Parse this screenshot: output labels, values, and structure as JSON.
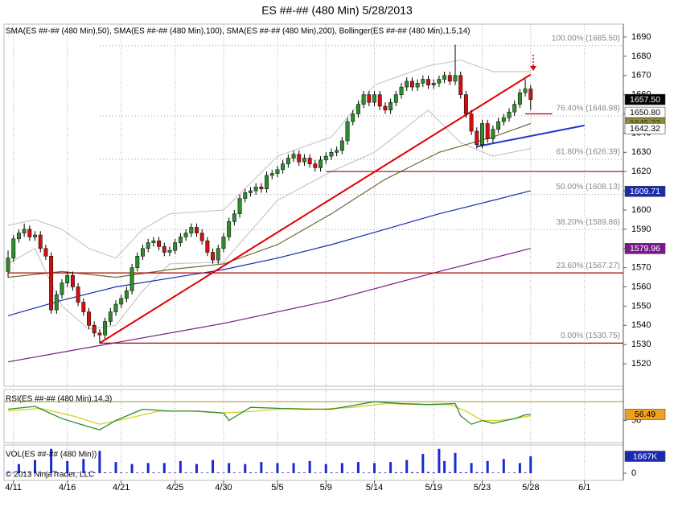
{
  "chart_data": [
    {
      "type": "candlestick",
      "title": "ES ##-## (480 Min)  5/28/2013",
      "legend_text": "SMA(ES ##-## (480 Min),50), SMA(ES ##-## (480 Min),100), SMA(ES ##-## (480 Min),200), Bollinger(ES ##-## (480 Min),1.5,14)",
      "xlim": [
        -0.75,
        114.2
      ],
      "ylim": [
        1508.3,
        1696.7
      ],
      "yticks": [
        1520,
        1530,
        1540,
        1550,
        1560,
        1570,
        1580,
        1590,
        1600,
        1610,
        1620,
        1630,
        1640,
        1650,
        1660,
        1670,
        1680,
        1690
      ],
      "up_color": "#2e8b2e",
      "down_color": "#d01010",
      "candles": [
        [
          1568,
          1579,
          1565,
          1575
        ],
        [
          1575,
          1587,
          1573,
          1585
        ],
        [
          1585,
          1590,
          1583,
          1588
        ],
        [
          1588,
          1593,
          1586,
          1590
        ],
        [
          1590,
          1592,
          1584,
          1586
        ],
        [
          1586,
          1589,
          1584,
          1587
        ],
        [
          1587,
          1589,
          1578,
          1580
        ],
        [
          1580,
          1582,
          1574,
          1576
        ],
        [
          1576,
          1578,
          1546,
          1548
        ],
        [
          1548,
          1558,
          1546,
          1556
        ],
        [
          1556,
          1564,
          1554,
          1562
        ],
        [
          1562,
          1568,
          1560,
          1566
        ],
        [
          1566,
          1568,
          1558,
          1560
        ],
        [
          1560,
          1562,
          1550,
          1552
        ],
        [
          1552,
          1554,
          1545,
          1547
        ],
        [
          1547,
          1549,
          1538,
          1540
        ],
        [
          1540,
          1542,
          1534,
          1536
        ],
        [
          1536,
          1538,
          1530.75,
          1535
        ],
        [
          1535,
          1544,
          1533,
          1542
        ],
        [
          1542,
          1549,
          1540,
          1547
        ],
        [
          1547,
          1553,
          1545,
          1551
        ],
        [
          1551,
          1556,
          1549,
          1554
        ],
        [
          1554,
          1560,
          1552,
          1558
        ],
        [
          1558,
          1572,
          1556,
          1570
        ],
        [
          1570,
          1578,
          1568,
          1576
        ],
        [
          1576,
          1582,
          1574,
          1580
        ],
        [
          1580,
          1585,
          1578,
          1583
        ],
        [
          1583,
          1586,
          1581,
          1584
        ],
        [
          1584,
          1586,
          1579,
          1581
        ],
        [
          1581,
          1583,
          1576,
          1578
        ],
        [
          1578,
          1581,
          1576,
          1579
        ],
        [
          1579,
          1585,
          1577,
          1583
        ],
        [
          1583,
          1588,
          1581,
          1586
        ],
        [
          1586,
          1590,
          1584,
          1588
        ],
        [
          1588,
          1593,
          1586,
          1591
        ],
        [
          1591,
          1593,
          1586,
          1588
        ],
        [
          1588,
          1590,
          1582,
          1584
        ],
        [
          1584,
          1586,
          1576,
          1578
        ],
        [
          1578,
          1580,
          1572,
          1574
        ],
        [
          1574,
          1582,
          1572,
          1580
        ],
        [
          1580,
          1588,
          1578,
          1586
        ],
        [
          1586,
          1596,
          1584,
          1594
        ],
        [
          1594,
          1600,
          1592,
          1598
        ],
        [
          1598,
          1608,
          1596,
          1606
        ],
        [
          1606,
          1611,
          1604,
          1609
        ],
        [
          1609,
          1612,
          1607,
          1610
        ],
        [
          1610,
          1614,
          1608,
          1612
        ],
        [
          1612,
          1614,
          1609,
          1611
        ],
        [
          1611,
          1620,
          1609,
          1618
        ],
        [
          1618,
          1621,
          1616,
          1619
        ],
        [
          1619,
          1623,
          1617,
          1621
        ],
        [
          1621,
          1626,
          1619,
          1624
        ],
        [
          1624,
          1629,
          1622,
          1627
        ],
        [
          1627,
          1631,
          1625,
          1629
        ],
        [
          1629,
          1631,
          1623,
          1625
        ],
        [
          1625,
          1629,
          1623,
          1627
        ],
        [
          1627,
          1629,
          1622,
          1624
        ],
        [
          1624,
          1626,
          1620,
          1622
        ],
        [
          1622,
          1628,
          1620,
          1626
        ],
        [
          1626,
          1630,
          1624,
          1628
        ],
        [
          1628,
          1632,
          1626,
          1630
        ],
        [
          1630,
          1633,
          1628,
          1631
        ],
        [
          1631,
          1638,
          1629,
          1636
        ],
        [
          1636,
          1648,
          1634,
          1646
        ],
        [
          1646,
          1652,
          1644,
          1650
        ],
        [
          1650,
          1657,
          1648,
          1655
        ],
        [
          1655,
          1662,
          1653,
          1660
        ],
        [
          1660,
          1662,
          1654,
          1656
        ],
        [
          1656,
          1662,
          1654,
          1660
        ],
        [
          1660,
          1662,
          1652,
          1654
        ],
        [
          1654,
          1656,
          1650,
          1652
        ],
        [
          1652,
          1658,
          1650,
          1656
        ],
        [
          1656,
          1662,
          1654,
          1660
        ],
        [
          1660,
          1666,
          1658,
          1664
        ],
        [
          1664,
          1669,
          1662,
          1667
        ],
        [
          1667,
          1669,
          1662,
          1664
        ],
        [
          1664,
          1668,
          1662,
          1666
        ],
        [
          1666,
          1670,
          1664,
          1668
        ],
        [
          1668,
          1670,
          1663,
          1665
        ],
        [
          1665,
          1668,
          1663,
          1666
        ],
        [
          1666,
          1670,
          1664,
          1668
        ],
        [
          1668,
          1672,
          1666,
          1670
        ],
        [
          1670,
          1672,
          1665,
          1667
        ],
        [
          1667,
          1686,
          1665,
          1670
        ],
        [
          1670,
          1672,
          1658,
          1660
        ],
        [
          1660,
          1662,
          1648,
          1650
        ],
        [
          1650,
          1652,
          1639,
          1641
        ],
        [
          1641,
          1643,
          1632,
          1634
        ],
        [
          1634,
          1647,
          1632,
          1645
        ],
        [
          1645,
          1647,
          1635,
          1637
        ],
        [
          1637,
          1644,
          1635,
          1642
        ],
        [
          1642,
          1648,
          1640,
          1646
        ],
        [
          1646,
          1650,
          1644,
          1648
        ],
        [
          1648,
          1653,
          1646,
          1651
        ],
        [
          1651,
          1657,
          1649,
          1655
        ],
        [
          1655,
          1663,
          1653,
          1661
        ],
        [
          1661,
          1668,
          1659,
          1663
        ],
        [
          1663,
          1665,
          1652,
          1657.5
        ]
      ],
      "lines": [
        {
          "color": "#c8c8c8",
          "x": [
            0,
            5,
            10,
            15,
            20,
            25,
            30,
            40,
            50,
            60,
            68,
            78,
            84,
            90,
            97
          ],
          "values": [
            1592,
            1595,
            1590,
            1580,
            1575,
            1590,
            1598,
            1600,
            1628,
            1638,
            1665,
            1675,
            1678,
            1672,
            1672
          ]
        },
        {
          "color": "#c8c8c8",
          "x": [
            0,
            5,
            10,
            15,
            20,
            25,
            30,
            40,
            50,
            60,
            68,
            78,
            84,
            90,
            97
          ],
          "values": [
            1572,
            1580,
            1550,
            1538,
            1540,
            1558,
            1572,
            1573,
            1605,
            1620,
            1630,
            1652,
            1635,
            1628,
            1632
          ]
        },
        {
          "color": "#6b6b3a",
          "x": [
            0,
            10,
            20,
            30,
            40,
            50,
            60,
            70,
            80,
            90,
            97
          ],
          "values": [
            1565,
            1568,
            1565,
            1569,
            1572,
            1582,
            1598,
            1616,
            1630,
            1638,
            1645
          ]
        },
        {
          "color": "#1a2bb0",
          "x": [
            0,
            10,
            20,
            40,
            50,
            60,
            70,
            80,
            90,
            97
          ],
          "values": [
            1545,
            1553,
            1560,
            1569,
            1575,
            1582,
            1590,
            1598,
            1605,
            1610
          ]
        },
        {
          "color": "#7a1a8a",
          "x": [
            0,
            20,
            40,
            60,
            80,
            97
          ],
          "values": [
            1521,
            1531,
            1541,
            1553,
            1568,
            1580
          ]
        },
        {
          "color": "#e00000",
          "x": [
            17,
            97
          ],
          "values": [
            1530.75,
            1670.5
          ]
        },
        {
          "color": "#2233cc",
          "x": [
            87,
            107
          ],
          "values": [
            1633,
            1644
          ]
        },
        {
          "color": "#b00000",
          "x": [
            17,
            114.2
          ],
          "values": [
            1530.75,
            1530.75
          ]
        },
        {
          "color": "#b00000",
          "x": [
            0,
            114.2
          ],
          "values": [
            1567.27,
            1567.27
          ]
        },
        {
          "color": "#b00000",
          "x": [
            59,
            114.2
          ],
          "values": [
            1620,
            1620
          ]
        },
        {
          "color": "#b00000",
          "x": [
            96,
            101
          ],
          "values": [
            1650,
            1650
          ]
        }
      ],
      "fib_levels": [
        {
          "label": "100.00% (1685.50)",
          "value": 1685.5
        },
        {
          "label": "76.40% (1648.98)",
          "value": 1648.98
        },
        {
          "label": "61.80% (1626.39)",
          "value": 1626.39
        },
        {
          "label": "50.00% (1608.13)",
          "value": 1608.13
        },
        {
          "label": "38.20% (1589.86)",
          "value": 1589.86
        },
        {
          "label": "23.60% (1567.27)",
          "value": 1567.27
        },
        {
          "label": "0.00% (1530.75)",
          "value": 1530.75
        }
      ],
      "tags": [
        {
          "value": 1645.22,
          "label": "1645.22",
          "bg": "#8b8b3a",
          "fg": "#3a3a10"
        },
        {
          "value": 1650.8,
          "label": "1650.80",
          "bg": "#ffffff",
          "fg": "#000000"
        },
        {
          "value": 1642.32,
          "label": "1642.32",
          "bg": "#ffffff",
          "fg": "#000000"
        },
        {
          "value": 1657.5,
          "label": "1657.50",
          "bg": "#000000",
          "fg": "#ffffff"
        },
        {
          "value": 1609.71,
          "label": "1609.71",
          "bg": "#1a2bb0",
          "fg": "#ffffff"
        },
        {
          "value": 1579.96,
          "label": "1579.96",
          "bg": "#7a1a8a",
          "fg": "#ffffff"
        }
      ]
    },
    {
      "type": "line",
      "label": "RSI(ES ##-## (480 Min),14,3)",
      "xlim": [
        -0.75,
        114.2
      ],
      "ylim": [
        26.5,
        83
      ],
      "yticks": [
        50
      ],
      "level": 70,
      "level_color": "#9a9a30",
      "series": [
        {
          "color": "#d8d020",
          "x": [
            0,
            6,
            12,
            17,
            22,
            28,
            34,
            40,
            46,
            52,
            58,
            64,
            70,
            76,
            82,
            85,
            88,
            91,
            94,
            97
          ],
          "values": [
            60,
            63,
            55,
            46,
            52,
            60,
            60,
            58,
            60,
            63,
            62,
            64,
            68,
            67,
            67,
            60,
            50,
            50,
            52,
            55
          ]
        },
        {
          "color": "#2e8b2e",
          "x": [
            0,
            5,
            10,
            14,
            17,
            20,
            25,
            30,
            35,
            40,
            41,
            45,
            50,
            55,
            60,
            64,
            68,
            73,
            78,
            83,
            84,
            86,
            88,
            90,
            94,
            96,
            97
          ],
          "values": [
            62,
            65,
            52,
            45,
            40,
            50,
            62,
            60,
            60,
            58,
            50,
            64,
            63,
            62,
            62,
            66,
            70,
            68,
            67,
            68,
            55,
            46,
            50,
            47,
            52,
            56,
            56.49
          ]
        }
      ],
      "tags": [
        {
          "value": 56.49,
          "label": "56.49",
          "bg": "#f0a020",
          "fg": "#000000"
        }
      ]
    },
    {
      "type": "bar",
      "label": "VOL(ES ##-## (480 Min))",
      "copyright": "© 2013 NinjaTrader, LLC",
      "color": "#1a2bd0",
      "xlim": [
        -0.75,
        114.2
      ],
      "ylim": [
        -714,
        2778
      ],
      "yticks": [
        0
      ],
      "xticks": [
        {
          "value": 1,
          "label": "4/11"
        },
        {
          "value": 11,
          "label": "4/16"
        },
        {
          "value": 21,
          "label": "4/21"
        },
        {
          "value": 31,
          "label": "4/25"
        },
        {
          "value": 40,
          "label": "4/30"
        },
        {
          "value": 50,
          "label": "5/5"
        },
        {
          "value": 59,
          "label": "5/9"
        },
        {
          "value": 68,
          "label": "5/14"
        },
        {
          "value": 79,
          "label": "5/19"
        },
        {
          "value": 88,
          "label": "5/23"
        },
        {
          "value": 97,
          "label": "5/28"
        },
        {
          "value": 107,
          "label": "6/1"
        }
      ],
      "values": [
        60,
        40,
        900,
        80,
        50,
        1300,
        70,
        60,
        2400,
        90,
        50,
        1200,
        70,
        60,
        1400,
        60,
        80,
        2200,
        80,
        60,
        1100,
        70,
        50,
        900,
        60,
        60,
        1000,
        70,
        50,
        1000,
        60,
        60,
        1200,
        70,
        50,
        900,
        60,
        60,
        1300,
        70,
        50,
        1000,
        60,
        50,
        900,
        80,
        60,
        1100,
        70,
        50,
        1000,
        60,
        60,
        1000,
        70,
        60,
        1200,
        60,
        50,
        900,
        70,
        60,
        1000,
        60,
        50,
        1100,
        60,
        60,
        1000,
        70,
        60,
        1100,
        90,
        80,
        1300,
        100,
        90,
        1900,
        120,
        80,
        2400,
        1200,
        100,
        2000,
        90,
        80,
        1000,
        100,
        80,
        1200,
        60,
        50,
        1400,
        40,
        60,
        1000,
        70,
        1667
      ],
      "tags": [
        {
          "value": 1667,
          "label": "1667K",
          "bg": "#1a2bb0",
          "fg": "#ffffff"
        }
      ]
    }
  ]
}
